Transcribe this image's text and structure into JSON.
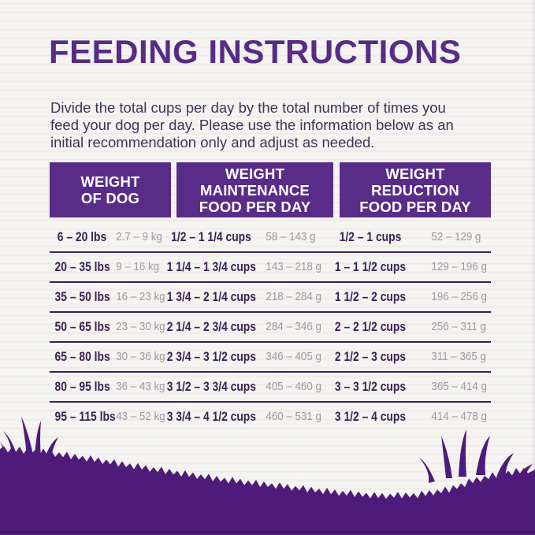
{
  "page": {
    "title": "FEEDING INSTRUCTIONS",
    "description": [
      "Divide the total cups per day by the total number of times you",
      "feed your dog per day. Please use the information below as an",
      "initial recommendation only and adjust as needed."
    ]
  },
  "table": {
    "headers": [
      {
        "lines": [
          "WEIGHT",
          "OF DOG"
        ]
      },
      {
        "lines": [
          "WEIGHT",
          "MAINTENANCE",
          "FOOD PER DAY"
        ]
      },
      {
        "lines": [
          "WEIGHT",
          "REDUCTION",
          "FOOD PER DAY"
        ]
      }
    ],
    "rows": [
      {
        "weight_lbs": "6 – 20 lbs",
        "weight_kg": "2.7 – 9 kg",
        "maintenance_cups": "1/2 – 1 1/4 cups",
        "maintenance_g": "58 – 143 g",
        "reduction_cups": "1/2 – 1 cups",
        "reduction_g": "52 – 129 g"
      },
      {
        "weight_lbs": "20 – 35 lbs",
        "weight_kg": "9 – 16 kg",
        "maintenance_cups": "1 1/4 – 1 3/4 cups",
        "maintenance_g": "143 – 218 g",
        "reduction_cups": "1 – 1 1/2 cups",
        "reduction_g": "129 – 196 g"
      },
      {
        "weight_lbs": "35 – 50 lbs",
        "weight_kg": "16 – 23 kg",
        "maintenance_cups": "1 3/4 – 2 1/4 cups",
        "maintenance_g": "218 – 284 g",
        "reduction_cups": "1 1/2 – 2 cups",
        "reduction_g": "196 – 256 g"
      },
      {
        "weight_lbs": "50 – 65 lbs",
        "weight_kg": "23 – 30 kg",
        "maintenance_cups": "2 1/4 – 2 3/4 cups",
        "maintenance_g": "284 – 346 g",
        "reduction_cups": "2 – 2 1/2 cups",
        "reduction_g": "256 – 311 g"
      },
      {
        "weight_lbs": "65 – 80 lbs",
        "weight_kg": "30 – 36 kg",
        "maintenance_cups": "2 3/4 – 3 1/2 cups",
        "maintenance_g": "346 – 405 g",
        "reduction_cups": "2 1/2 – 3 cups",
        "reduction_g": "311 – 365 g"
      },
      {
        "weight_lbs": "80 – 95 lbs",
        "weight_kg": "36 – 43 kg",
        "maintenance_cups": "3 1/2 – 3 3/4 cups",
        "maintenance_g": "405 – 460 g",
        "reduction_cups": "3 – 3 1/2 cups",
        "reduction_g": "365 – 414 g"
      },
      {
        "weight_lbs": "95 – 115 lbs",
        "weight_kg": "43 – 52 kg",
        "maintenance_cups": "3 3/4 – 4 1/2 cups",
        "maintenance_g": "460 – 531 g",
        "reduction_cups": "3 1/2 – 4 cups",
        "reduction_g": "414 – 478 g"
      }
    ]
  },
  "colors": {
    "accent_purple": "#572c85",
    "header_background": "#582c87",
    "header_text": "#ffffff",
    "row_bold_text": "#3b2153",
    "row_gray_text": "#9d98a1",
    "separator": "#3b2153",
    "grass": "#4e1b7b",
    "background": "#f2f1ee"
  }
}
